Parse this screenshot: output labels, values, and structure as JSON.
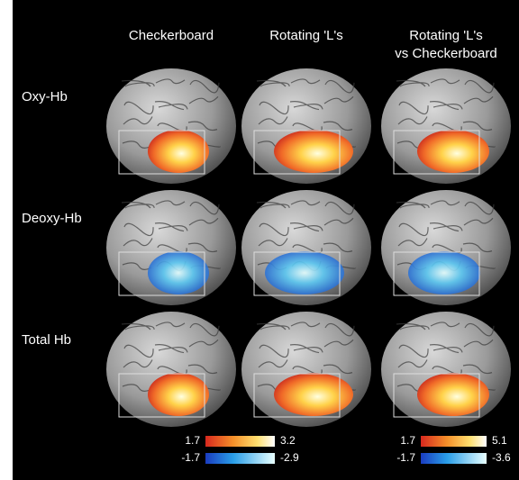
{
  "columns": [
    [
      "Checkerboard"
    ],
    [
      "Rotating 'L's"
    ],
    [
      "Rotating 'L's",
      "vs Checkerboard"
    ]
  ],
  "rows": [
    "Oxy-Hb",
    "Deoxy-Hb",
    "Total Hb"
  ],
  "colorbars": [
    {
      "pos_min": "1.7",
      "pos_max": "3.2",
      "neg_min": "-1.7",
      "neg_max": "-2.9"
    },
    {
      "pos_min": "1.7",
      "pos_max": "5.1",
      "neg_min": "-1.7",
      "neg_max": "-3.6"
    }
  ]
}
